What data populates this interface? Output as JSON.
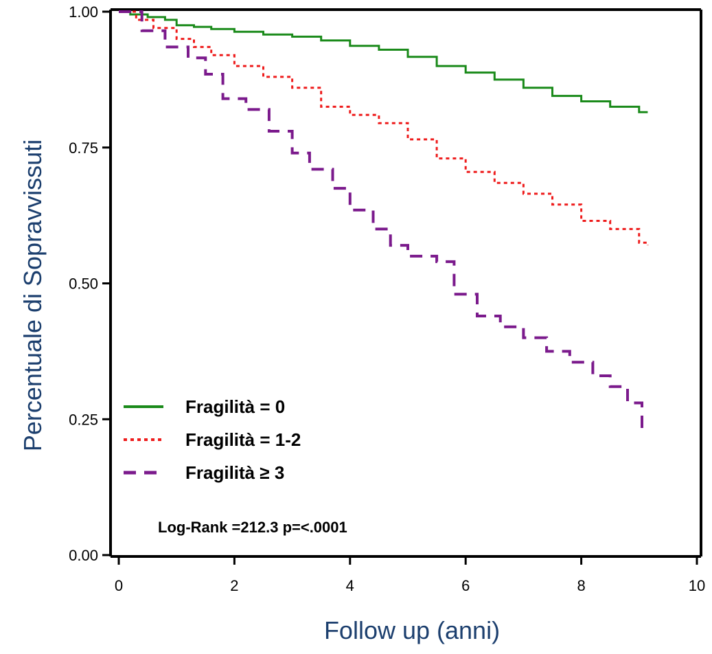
{
  "chart_data": {
    "type": "line",
    "xlabel": "Follow up (anni)",
    "ylabel": "Percentuale di  Sopravvissuti",
    "xlim": [
      0,
      10
    ],
    "ylim": [
      0,
      1
    ],
    "x_ticks": [
      "0",
      "2",
      "4",
      "6",
      "8",
      "10"
    ],
    "y_ticks": [
      "0.00",
      "0.25",
      "0.50",
      "0.75",
      "1.00"
    ],
    "grid": false,
    "legend_position": "bottom-left",
    "annotation": "Log-Rank =212.3 p=<.0001",
    "series": [
      {
        "name": "Fragilità = 0",
        "color": "#1a8a1a",
        "style": "solid",
        "x": [
          0,
          0.2,
          0.5,
          0.8,
          1.0,
          1.3,
          1.6,
          2.0,
          2.5,
          3.0,
          3.5,
          4.0,
          4.5,
          5.0,
          5.5,
          6.0,
          6.5,
          7.0,
          7.5,
          8.0,
          8.5,
          9.0,
          9.15
        ],
        "values": [
          1.0,
          0.995,
          0.99,
          0.985,
          0.975,
          0.972,
          0.968,
          0.963,
          0.958,
          0.954,
          0.947,
          0.937,
          0.93,
          0.917,
          0.9,
          0.888,
          0.875,
          0.86,
          0.845,
          0.835,
          0.825,
          0.815,
          0.815
        ]
      },
      {
        "name": "Fragilità = 1-2",
        "color": "#ee1c1c",
        "style": "dotted",
        "x": [
          0,
          0.3,
          0.6,
          1.0,
          1.3,
          1.6,
          2.0,
          2.5,
          3.0,
          3.5,
          4.0,
          4.5,
          5.0,
          5.5,
          6.0,
          6.5,
          7.0,
          7.5,
          8.0,
          8.5,
          9.0,
          9.15
        ],
        "values": [
          1.0,
          0.985,
          0.97,
          0.95,
          0.935,
          0.92,
          0.9,
          0.88,
          0.86,
          0.825,
          0.81,
          0.795,
          0.765,
          0.73,
          0.705,
          0.685,
          0.665,
          0.645,
          0.615,
          0.6,
          0.575,
          0.57
        ]
      },
      {
        "name": "Fragilità ≥ 3",
        "color": "#7b1a8c",
        "style": "dashed",
        "x": [
          0,
          0.4,
          0.8,
          1.2,
          1.5,
          1.8,
          2.2,
          2.6,
          3.0,
          3.3,
          3.7,
          4.0,
          4.4,
          4.7,
          5.0,
          5.5,
          5.8,
          6.2,
          6.6,
          7.0,
          7.4,
          7.8,
          8.2,
          8.5,
          8.8,
          9.05
        ],
        "values": [
          1.0,
          0.965,
          0.935,
          0.915,
          0.885,
          0.84,
          0.82,
          0.78,
          0.74,
          0.71,
          0.675,
          0.635,
          0.6,
          0.57,
          0.55,
          0.54,
          0.48,
          0.44,
          0.42,
          0.4,
          0.375,
          0.355,
          0.33,
          0.31,
          0.28,
          0.23
        ]
      }
    ]
  }
}
